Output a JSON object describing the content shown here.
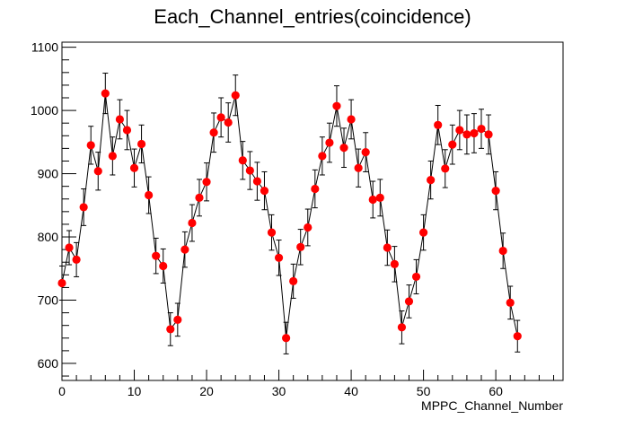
{
  "chart_data": {
    "type": "scatter",
    "title": "Each_Channel_entries(coincidence)",
    "xlabel": "MPPC_Channel_Number",
    "ylabel": "",
    "xlim": [
      0,
      69.3
    ],
    "ylim": [
      573,
      1108
    ],
    "x_ticks": [
      0,
      10,
      20,
      30,
      40,
      50,
      60
    ],
    "y_ticks": [
      600,
      700,
      800,
      900,
      1000,
      1100
    ],
    "grid": false,
    "legend": "none",
    "marker_color": "#ff0000",
    "line_color": "#000000",
    "series": [
      {
        "x": [
          0,
          1,
          2,
          3,
          4,
          5,
          6,
          7,
          8,
          9,
          10,
          11,
          12,
          13,
          14,
          15,
          16,
          17,
          18,
          19,
          20,
          21,
          22,
          23,
          24,
          25,
          26,
          27,
          28,
          29,
          30,
          31,
          32,
          33,
          34,
          35,
          36,
          37,
          38,
          39,
          40,
          41,
          42,
          43,
          44,
          45,
          46,
          47,
          48,
          49,
          50,
          51,
          52,
          53,
          54,
          55,
          56,
          57,
          58,
          59,
          60,
          61,
          62,
          63
        ],
        "y": [
          727,
          783,
          764,
          847,
          945,
          904,
          1027,
          928,
          986,
          969,
          909,
          947,
          866,
          770,
          754,
          654,
          669,
          780,
          822,
          862,
          887,
          965,
          989,
          981,
          1024,
          921,
          905,
          888,
          873,
          807,
          767,
          640,
          730,
          784,
          815,
          876,
          928,
          949,
          1007,
          941,
          986,
          909,
          934,
          859,
          862,
          783,
          757,
          657,
          698,
          737,
          807,
          890,
          977,
          908,
          946,
          969,
          962,
          964,
          971,
          962,
          873,
          778,
          696,
          643
        ],
        "error": [
          27,
          27,
          27,
          29,
          30,
          30,
          32,
          30,
          31,
          31,
          30,
          30,
          29,
          28,
          27,
          26,
          26,
          28,
          29,
          29,
          30,
          31,
          31,
          31,
          32,
          30,
          30,
          30,
          30,
          28,
          28,
          25,
          27,
          28,
          29,
          30,
          30,
          31,
          32,
          31,
          31,
          30,
          31,
          29,
          29,
          28,
          28,
          26,
          26,
          27,
          28,
          30,
          31,
          30,
          31,
          31,
          31,
          31,
          31,
          31,
          30,
          28,
          26,
          25
        ]
      }
    ]
  }
}
